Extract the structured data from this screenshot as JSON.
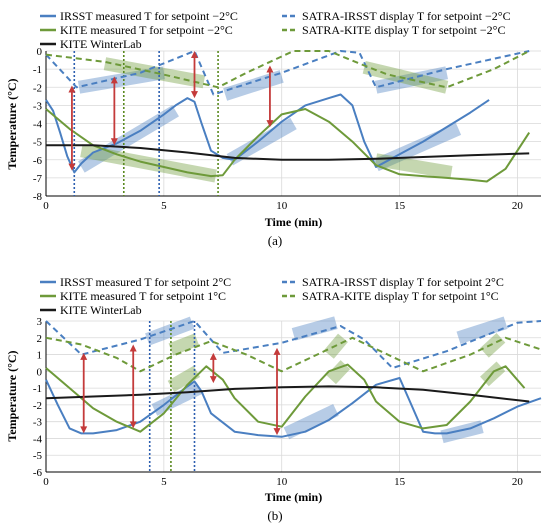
{
  "chart_data": [
    {
      "type": "line",
      "panel_label": "(a)",
      "xlabel": "Time (min)",
      "ylabel": "Temperature (°C)",
      "xlim": [
        0,
        21
      ],
      "ylim": [
        -8,
        0
      ],
      "xticks": [
        0,
        5,
        10,
        15,
        20
      ],
      "yticks": [
        0,
        -1,
        -2,
        -3,
        -4,
        -5,
        -6,
        -7,
        -8
      ],
      "grid": true,
      "legend_position": "top",
      "series": [
        {
          "name": "IRSST measured T for setpoint −2°C",
          "color": "#4a7fc1",
          "dash": "solid",
          "x": [
            0,
            0.3,
            0.6,
            0.9,
            1.2,
            1.5,
            2,
            3,
            4,
            5,
            5.5,
            6,
            6.3,
            6.6,
            7,
            7.5,
            8,
            9,
            10,
            11,
            12,
            12.5,
            13,
            13.5,
            14,
            15,
            16,
            17,
            18,
            18.8
          ],
          "y": [
            -2.7,
            -3.3,
            -4.5,
            -5.8,
            -6.7,
            -6.2,
            -5.6,
            -5.1,
            -4.4,
            -3.5,
            -3.0,
            -2.6,
            -2.8,
            -4.0,
            -5.5,
            -5.9,
            -6.0,
            -5.0,
            -3.9,
            -3.0,
            -2.6,
            -2.4,
            -3.0,
            -5.0,
            -6.4,
            -5.7,
            -5.0,
            -4.2,
            -3.4,
            -2.7
          ]
        },
        {
          "name": "KITE measured T for setpoint −2°C",
          "color": "#6e9a3a",
          "dash": "solid",
          "x": [
            0,
            1,
            2,
            3,
            4,
            5,
            6,
            7,
            7.5,
            8,
            9,
            10,
            11,
            12,
            13,
            14,
            15,
            16,
            17,
            18,
            18.7,
            19.5,
            20.5
          ],
          "y": [
            -3.2,
            -4.3,
            -5.2,
            -5.7,
            -6.1,
            -6.4,
            -6.7,
            -6.9,
            -6.85,
            -6.0,
            -4.7,
            -3.5,
            -3.2,
            -3.9,
            -5.0,
            -6.3,
            -6.8,
            -6.9,
            -7.0,
            -7.1,
            -7.2,
            -6.5,
            -4.5
          ]
        },
        {
          "name": "KITE WinterLab",
          "color": "#1a1a1a",
          "dash": "solid",
          "x": [
            0,
            2,
            4,
            6,
            8,
            10,
            12,
            14,
            16,
            18,
            20.5
          ],
          "y": [
            -5.2,
            -5.2,
            -5.35,
            -5.6,
            -5.9,
            -6.0,
            -6.0,
            -5.95,
            -5.85,
            -5.75,
            -5.65
          ]
        },
        {
          "name": "SATRA-IRSST display T for setpoint −2°C",
          "color": "#4a7fc1",
          "dash": "dashed",
          "x": [
            0,
            1.3,
            4,
            6.3,
            7.1,
            10,
            12.5,
            13.3,
            14.0,
            17,
            20.5
          ],
          "y": [
            -0.2,
            -2.0,
            -1.2,
            0.0,
            -2.4,
            -1.2,
            0.0,
            -0.1,
            -2.0,
            -1.0,
            0.0
          ]
        },
        {
          "name": "SATRA-KITE display T for setpoint −2°C",
          "color": "#6e9a3a",
          "dash": "dashed",
          "x": [
            0,
            2.5,
            5,
            7.3,
            8.5,
            10.5,
            12,
            13.5,
            14.5,
            17,
            19,
            20.5
          ],
          "y": [
            -0.2,
            -0.6,
            -1.3,
            -2.0,
            -1.2,
            0.0,
            0.0,
            -0.8,
            -1.3,
            -2.0,
            -1.0,
            0.0
          ]
        }
      ]
    },
    {
      "type": "line",
      "panel_label": "(b)",
      "xlabel": "Time (min)",
      "ylabel": "Temperature (°C)",
      "xlim": [
        0,
        21
      ],
      "ylim": [
        -6,
        3
      ],
      "xticks": [
        0,
        5,
        10,
        15,
        20
      ],
      "yticks": [
        3,
        2,
        1,
        0,
        -1,
        -2,
        -3,
        -4,
        -5,
        -6
      ],
      "grid": true,
      "legend_position": "top",
      "series": [
        {
          "name": "IRSST measured T for setpoint 2°C",
          "color": "#4a7fc1",
          "dash": "solid",
          "x": [
            0,
            0.5,
            1,
            1.5,
            2,
            3,
            4,
            5,
            6,
            6.3,
            6.6,
            7,
            8,
            9,
            10,
            11,
            12,
            13,
            14,
            15,
            15.5,
            16,
            16.5,
            17,
            18,
            19,
            20,
            21
          ],
          "y": [
            -0.5,
            -2.0,
            -3.4,
            -3.7,
            -3.7,
            -3.5,
            -3.0,
            -2.0,
            -0.9,
            -0.6,
            -1.2,
            -2.5,
            -3.6,
            -3.8,
            -3.9,
            -3.6,
            -2.9,
            -1.9,
            -0.8,
            -0.4,
            -2.0,
            -3.6,
            -3.7,
            -3.7,
            -3.4,
            -2.8,
            -2.1,
            -1.6
          ]
        },
        {
          "name": "KITE measured T for setpoint 1°C",
          "color": "#6e9a3a",
          "dash": "solid",
          "x": [
            0,
            1,
            2,
            3,
            4,
            5,
            6,
            6.8,
            7.5,
            8,
            9,
            10,
            11,
            12,
            12.8,
            13.5,
            14,
            15,
            16,
            17,
            18,
            19,
            19.5,
            20.3
          ],
          "y": [
            0.2,
            -1.0,
            -2.2,
            -3.0,
            -3.6,
            -2.5,
            -0.8,
            0.3,
            -0.5,
            -1.6,
            -3.0,
            -3.3,
            -1.5,
            0.0,
            0.4,
            -0.5,
            -1.8,
            -3.0,
            -3.4,
            -3.2,
            -1.8,
            0.0,
            0.3,
            -1.0
          ]
        },
        {
          "name": "KITE WinterLab",
          "color": "#1a1a1a",
          "dash": "solid",
          "x": [
            0,
            2,
            4,
            6,
            8,
            10,
            12,
            14,
            16,
            18,
            20.5
          ],
          "y": [
            -1.6,
            -1.5,
            -1.4,
            -1.25,
            -1.05,
            -0.95,
            -0.9,
            -0.95,
            -1.1,
            -1.4,
            -1.8
          ]
        },
        {
          "name": "SATRA-IRSST display T for setpoint 2°C",
          "color": "#4a7fc1",
          "dash": "dashed",
          "x": [
            0,
            1.5,
            4,
            6.3,
            7.5,
            10,
            12.5,
            13.5,
            14.7,
            17,
            20,
            21
          ],
          "y": [
            3.0,
            1.0,
            1.9,
            3.0,
            1.1,
            1.7,
            2.7,
            1.9,
            0.2,
            1.2,
            2.9,
            3.0
          ]
        },
        {
          "name": "SATRA-KITE display T for setpoint 1°C",
          "color": "#6e9a3a",
          "dash": "dashed",
          "x": [
            0,
            1.5,
            3,
            4,
            5.5,
            7,
            8.5,
            10,
            11.5,
            13,
            14.5,
            16,
            18,
            19.5,
            21
          ],
          "y": [
            2.0,
            1.6,
            0.8,
            0.0,
            1.0,
            1.8,
            1.0,
            0.0,
            1.0,
            2.0,
            1.0,
            0.0,
            1.0,
            2.0,
            1.3
          ]
        }
      ]
    }
  ]
}
